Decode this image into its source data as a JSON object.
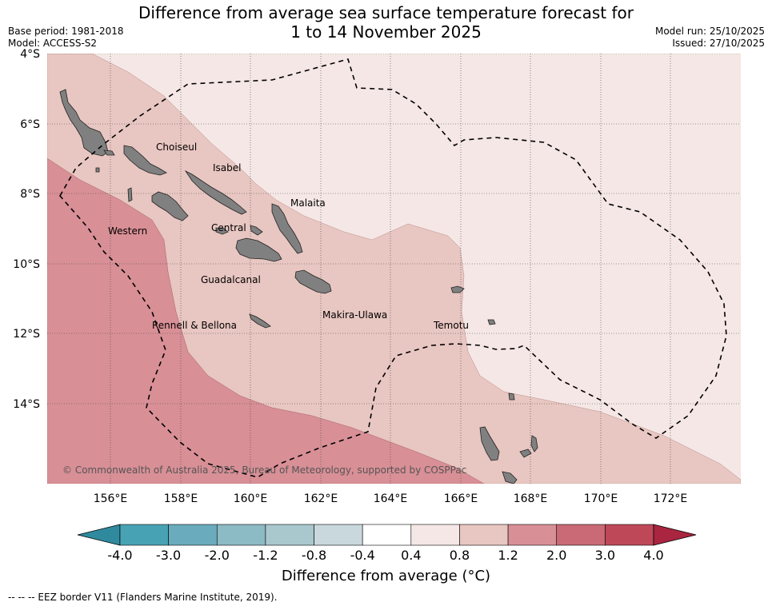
{
  "title_line1": "Difference from average sea surface temperature forecast for",
  "title_line2": "1 to 14 November 2025",
  "base_period": "Base period: 1981-2018",
  "model": "Model: ACCESS-S2",
  "model_run": "Model run: 25/10/2025",
  "issued": "Issued: 27/10/2025",
  "latitude_labels": [
    "4°S",
    "6°S",
    "8°S",
    "10°S",
    "12°S",
    "14°S"
  ],
  "longitude_labels": [
    "156°E",
    "158°E",
    "160°E",
    "162°E",
    "164°E",
    "166°E",
    "168°E",
    "170°E",
    "172°E"
  ],
  "provinces": [
    "Choiseul",
    "Isabel",
    "Malaita",
    "Western",
    "Central",
    "Guadalcanal",
    "Rennell & Bellona",
    "Makira-Ulawa",
    "Temotu"
  ],
  "copyright": "© Commonwealth of Australia 2025, Bureau of Meteorology, supported by COSPPac",
  "colorbar": {
    "title": "Difference from average (°C)",
    "tick_labels": [
      "-4.0",
      "-3.0",
      "-2.0",
      "-1.2",
      "-0.8",
      "-0.4",
      "0.4",
      "0.8",
      "1.2",
      "2.0",
      "3.0",
      "4.0"
    ],
    "colors": [
      "#2f8a9e",
      "#47a2b4",
      "#6aabbd",
      "#8cbac5",
      "#a8c8ce",
      "#c8d8dc",
      "#ffffff",
      "#f5e7e5",
      "#e8c6c1",
      "#d88f96",
      "#c96a76",
      "#bf4858",
      "#aa2540"
    ]
  },
  "eez_note": "--  --  -- EEZ border V11 (Flanders Marine Institute, 2019)."
}
